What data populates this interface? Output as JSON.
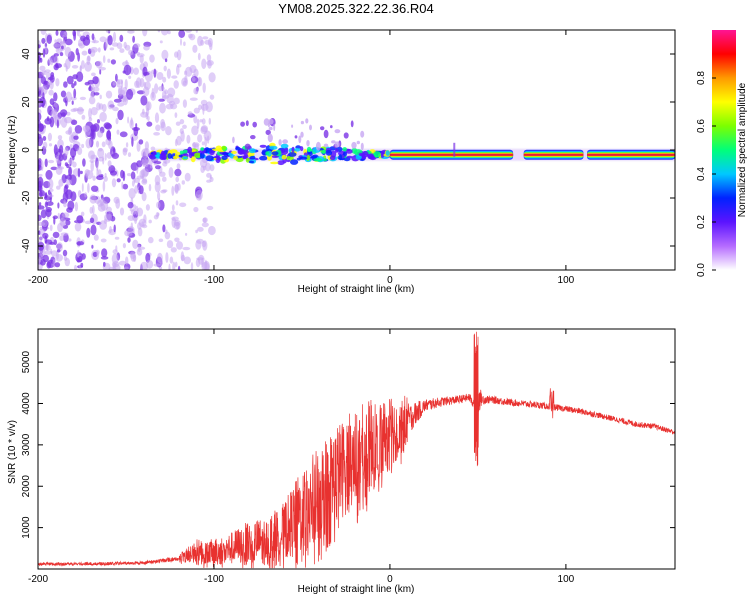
{
  "figure": {
    "title": "YM08.2025.322.22.36.R04"
  },
  "colors": {
    "snr_line": "#e8312f",
    "axis": "#000000",
    "background": "#ffffff",
    "band_low": "#c7a6f2",
    "band_mid": "#7a33e6",
    "band_hot": "#e8193a"
  },
  "colorbar": {
    "label": "Normalized spectral amplitude",
    "range": [
      0,
      1
    ],
    "ticks": [
      0.0,
      0.2,
      0.4,
      0.6,
      0.8
    ],
    "tick_labels": [
      "0.0",
      "0.2",
      "0.4",
      "0.6",
      "0.8"
    ],
    "stops": [
      "#ffffff",
      "#b56bff",
      "#5b14ff",
      "#0022ff",
      "#00c8ff",
      "#00ff7a",
      "#7cff00",
      "#ffff00",
      "#ff9a00",
      "#ff0000",
      "#ff1493"
    ]
  },
  "chart_data": [
    {
      "type": "heatmap",
      "xlabel": "Height of straight line (km)",
      "ylabel": "Frequency (Hz)",
      "xlim": [
        -200,
        162
      ],
      "ylim": [
        -50,
        50
      ],
      "x_ticks": [
        -200,
        -100,
        0,
        100
      ],
      "x_tick_labels": [
        "-200",
        "-100",
        "0",
        "100"
      ],
      "y_ticks": [
        -40,
        -20,
        0,
        20,
        40
      ],
      "y_tick_labels": [
        "-40",
        "-20",
        "0",
        "20",
        "40"
      ],
      "noise_region_x": [
        -200,
        -115
      ],
      "signal_band_freq_hz": -2,
      "signal_start_x": -135,
      "strong_band_start_x": 0,
      "strong_band_segments": [
        [
          0,
          70
        ],
        [
          76,
          110
        ],
        [
          112,
          162
        ]
      ]
    },
    {
      "type": "line",
      "xlabel": "Height of straight line (km)",
      "ylabel": "SNR (10 * v/v)",
      "xlim": [
        -200,
        162
      ],
      "ylim": [
        0,
        5800
      ],
      "x_ticks": [
        -200,
        -100,
        0,
        100
      ],
      "x_tick_labels": [
        "-200",
        "-100",
        "0",
        "100"
      ],
      "y_ticks": [
        1000,
        2000,
        3000,
        4000,
        5000
      ],
      "y_tick_labels": [
        "1000",
        "2000",
        "3000",
        "4000",
        "5000"
      ],
      "series": [
        {
          "name": "SNR",
          "x": [
            -200,
            -180,
            -160,
            -140,
            -120,
            -110,
            -100,
            -90,
            -80,
            -70,
            -60,
            -50,
            -40,
            -30,
            -20,
            -10,
            0,
            10,
            20,
            30,
            40,
            45,
            48,
            50,
            52,
            55,
            60,
            70,
            80,
            90,
            100,
            110,
            120,
            130,
            140,
            150,
            162
          ],
          "y": [
            120,
            120,
            130,
            150,
            250,
            450,
            400,
            500,
            650,
            700,
            900,
            1400,
            1800,
            2300,
            2700,
            3000,
            3300,
            3600,
            3950,
            4050,
            4100,
            4150,
            4000,
            4200,
            4100,
            4100,
            4080,
            4020,
            3980,
            3930,
            3870,
            3800,
            3700,
            3600,
            3500,
            3450,
            3300
          ],
          "spread": [
            80,
            80,
            80,
            80,
            120,
            350,
            400,
            500,
            650,
            700,
            900,
            1300,
            1500,
            1500,
            1500,
            1400,
            1100,
            800,
            300,
            220,
            200,
            200,
            300,
            1000,
            300,
            200,
            180,
            170,
            160,
            160,
            150,
            150,
            140,
            140,
            140,
            130,
            130
          ]
        }
      ],
      "annotations": [
        {
          "x": 49,
          "peak_y": 5750,
          "dip_y": 2300
        },
        {
          "x": 92,
          "peak_y": 4400,
          "dip_y": 3600
        }
      ]
    }
  ]
}
